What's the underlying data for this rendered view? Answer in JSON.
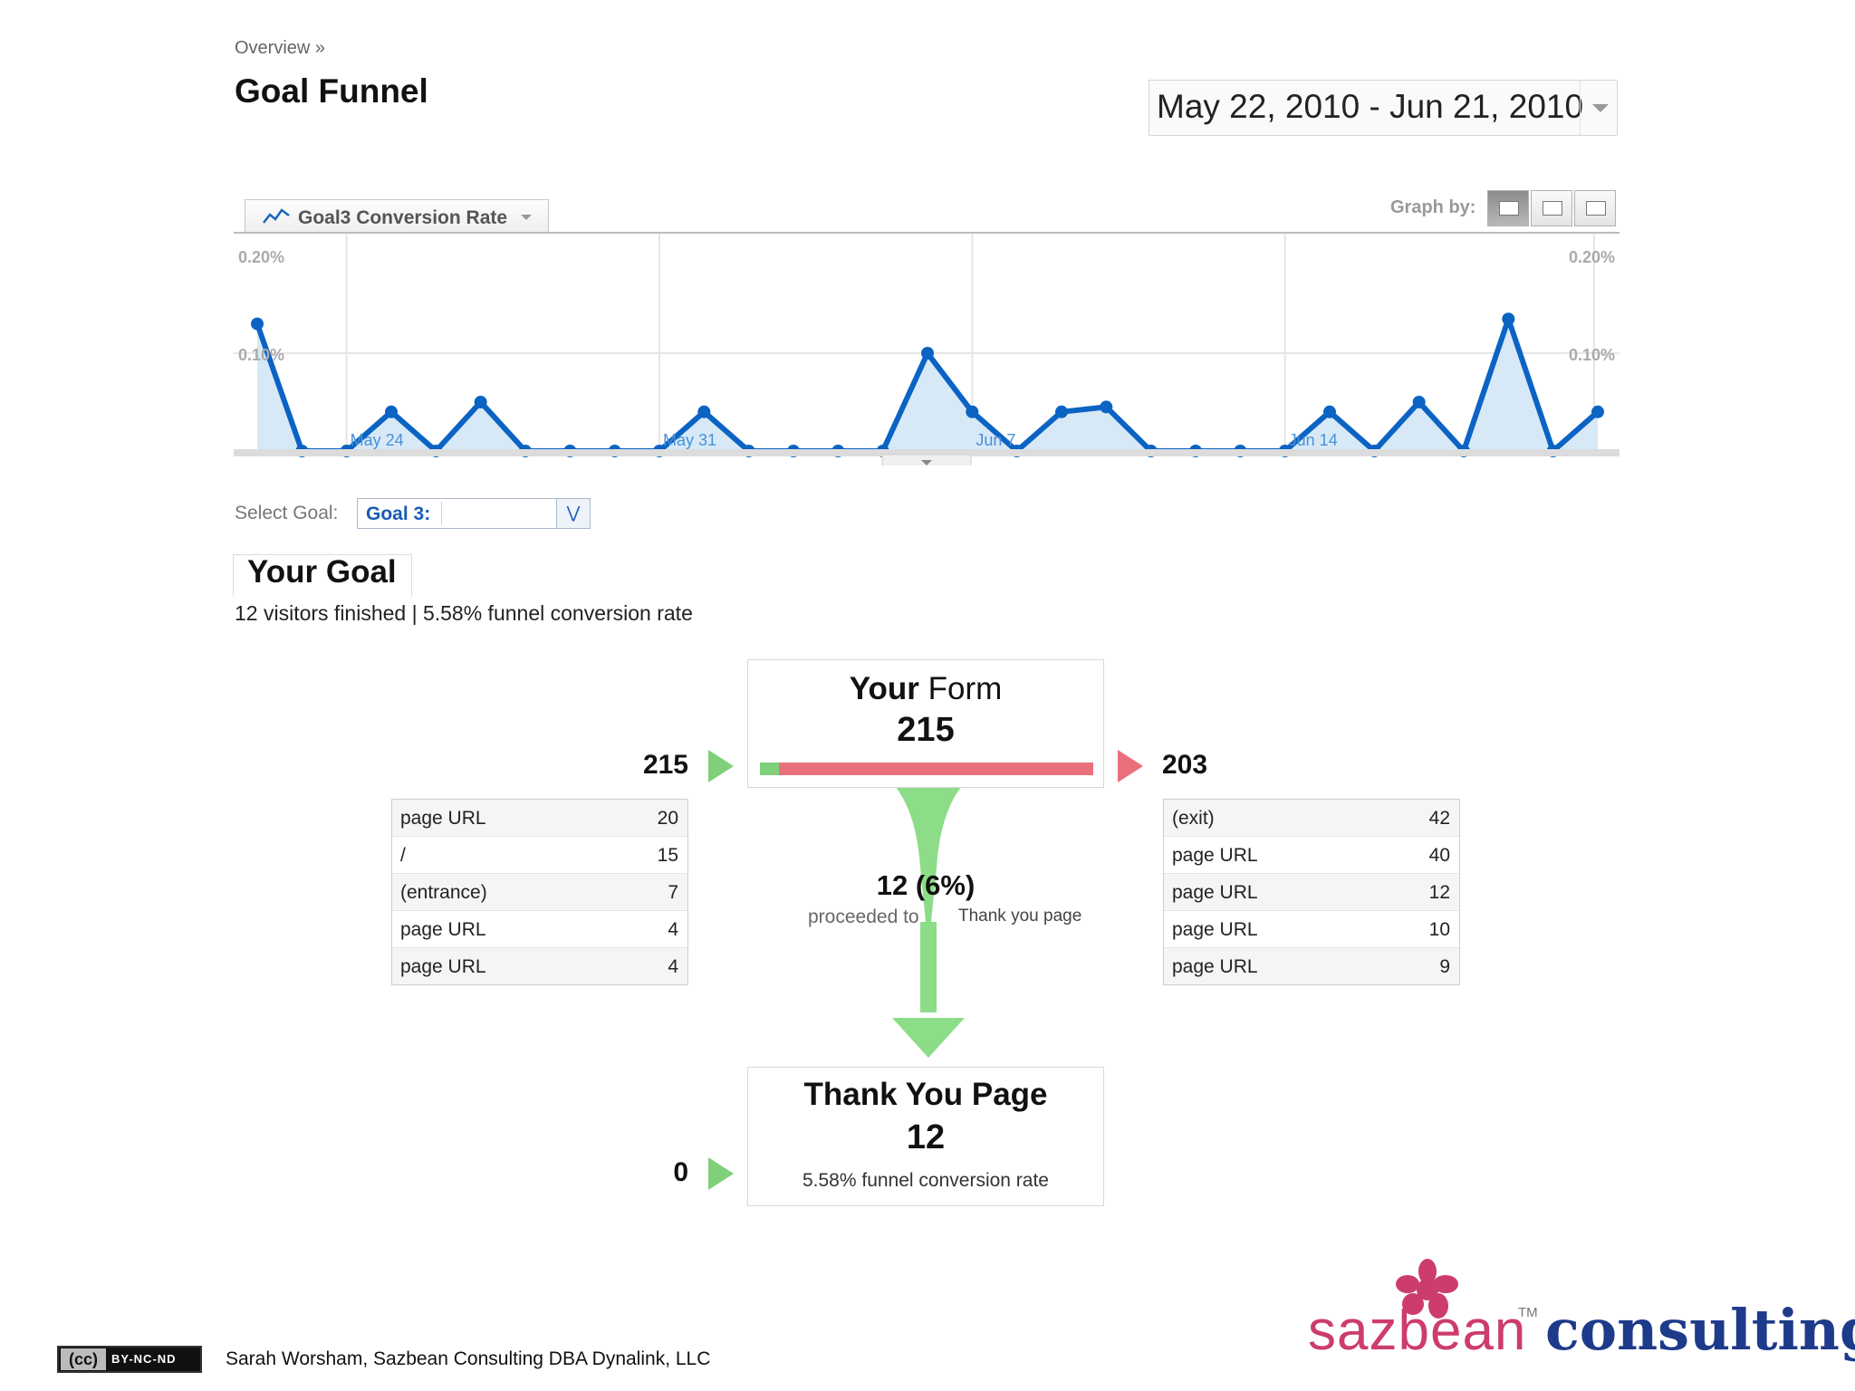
{
  "breadcrumb": "Overview »",
  "page_title": "Goal Funnel",
  "date_range": "May 22, 2010 - Jun 21, 2010",
  "graph": {
    "metric_label": "Goal3 Conversion Rate",
    "graph_by_label": "Graph by:"
  },
  "chart_data": {
    "type": "area",
    "series": [
      {
        "values": [
          0.13,
          0,
          0,
          0.04,
          0,
          0.05,
          0,
          0,
          0,
          0,
          0.04,
          0,
          0,
          0,
          0,
          0.1,
          0.04,
          0,
          0.04,
          0.045,
          0,
          0,
          0,
          0,
          0.04,
          0,
          0.05,
          0,
          0.135,
          0,
          0.04
        ]
      }
    ],
    "x_tick_labels": [
      "May 24",
      "May 31",
      "Jun 7",
      "Jun 14"
    ],
    "y_tick_labels_left": [
      "0.20%",
      "0.10%"
    ],
    "y_tick_labels_right": [
      "0.20%",
      "0.10%"
    ],
    "ylim": [
      0,
      0.2
    ],
    "grid": true,
    "line_color": "#0b63c4",
    "fill_color": "#d7e9f7"
  },
  "select_goal": {
    "label": "Select Goal:",
    "value": "Goal 3:"
  },
  "goal": {
    "title": "Your Goal",
    "summary": "12 visitors finished | 5.58% funnel conversion rate"
  },
  "funnel": {
    "step1": {
      "title_bold": "Your",
      "title_rest": "Form",
      "count": "215",
      "entries": "215",
      "exits": "203",
      "continued_fraction": 0.056
    },
    "entrance_sources": [
      {
        "label": "page URL",
        "value": "20"
      },
      {
        "label": "/",
        "value": "15"
      },
      {
        "label": "(entrance)",
        "value": "7"
      },
      {
        "label": "page URL",
        "value": "4"
      },
      {
        "label": "page URL",
        "value": "4"
      }
    ],
    "exit_destinations": [
      {
        "label": "(exit)",
        "value": "42"
      },
      {
        "label": "page URL",
        "value": "40"
      },
      {
        "label": "page URL",
        "value": "12"
      },
      {
        "label": "page URL",
        "value": "10"
      },
      {
        "label": "page URL",
        "value": "9"
      }
    ],
    "proceeded": {
      "count": "12 (6%)",
      "text": "proceeded to",
      "page": "Thank you page"
    },
    "step2": {
      "title": "Thank You Page",
      "count": "12",
      "entries": "0",
      "rate": "5.58% funnel conversion rate"
    }
  },
  "colors": {
    "enter_arrow": "#7fd07a",
    "exit_arrow": "#e8707a",
    "funnel_flow": "#8ddc87"
  },
  "footer": {
    "license": "BY-NC-ND",
    "cc": "(cc)",
    "credit": "Sarah Worsham, Sazbean Consulting DBA Dynalink, LLC",
    "brand_part1": "sazbean",
    "brand_tm": "TM",
    "brand_part2": "consulting"
  }
}
